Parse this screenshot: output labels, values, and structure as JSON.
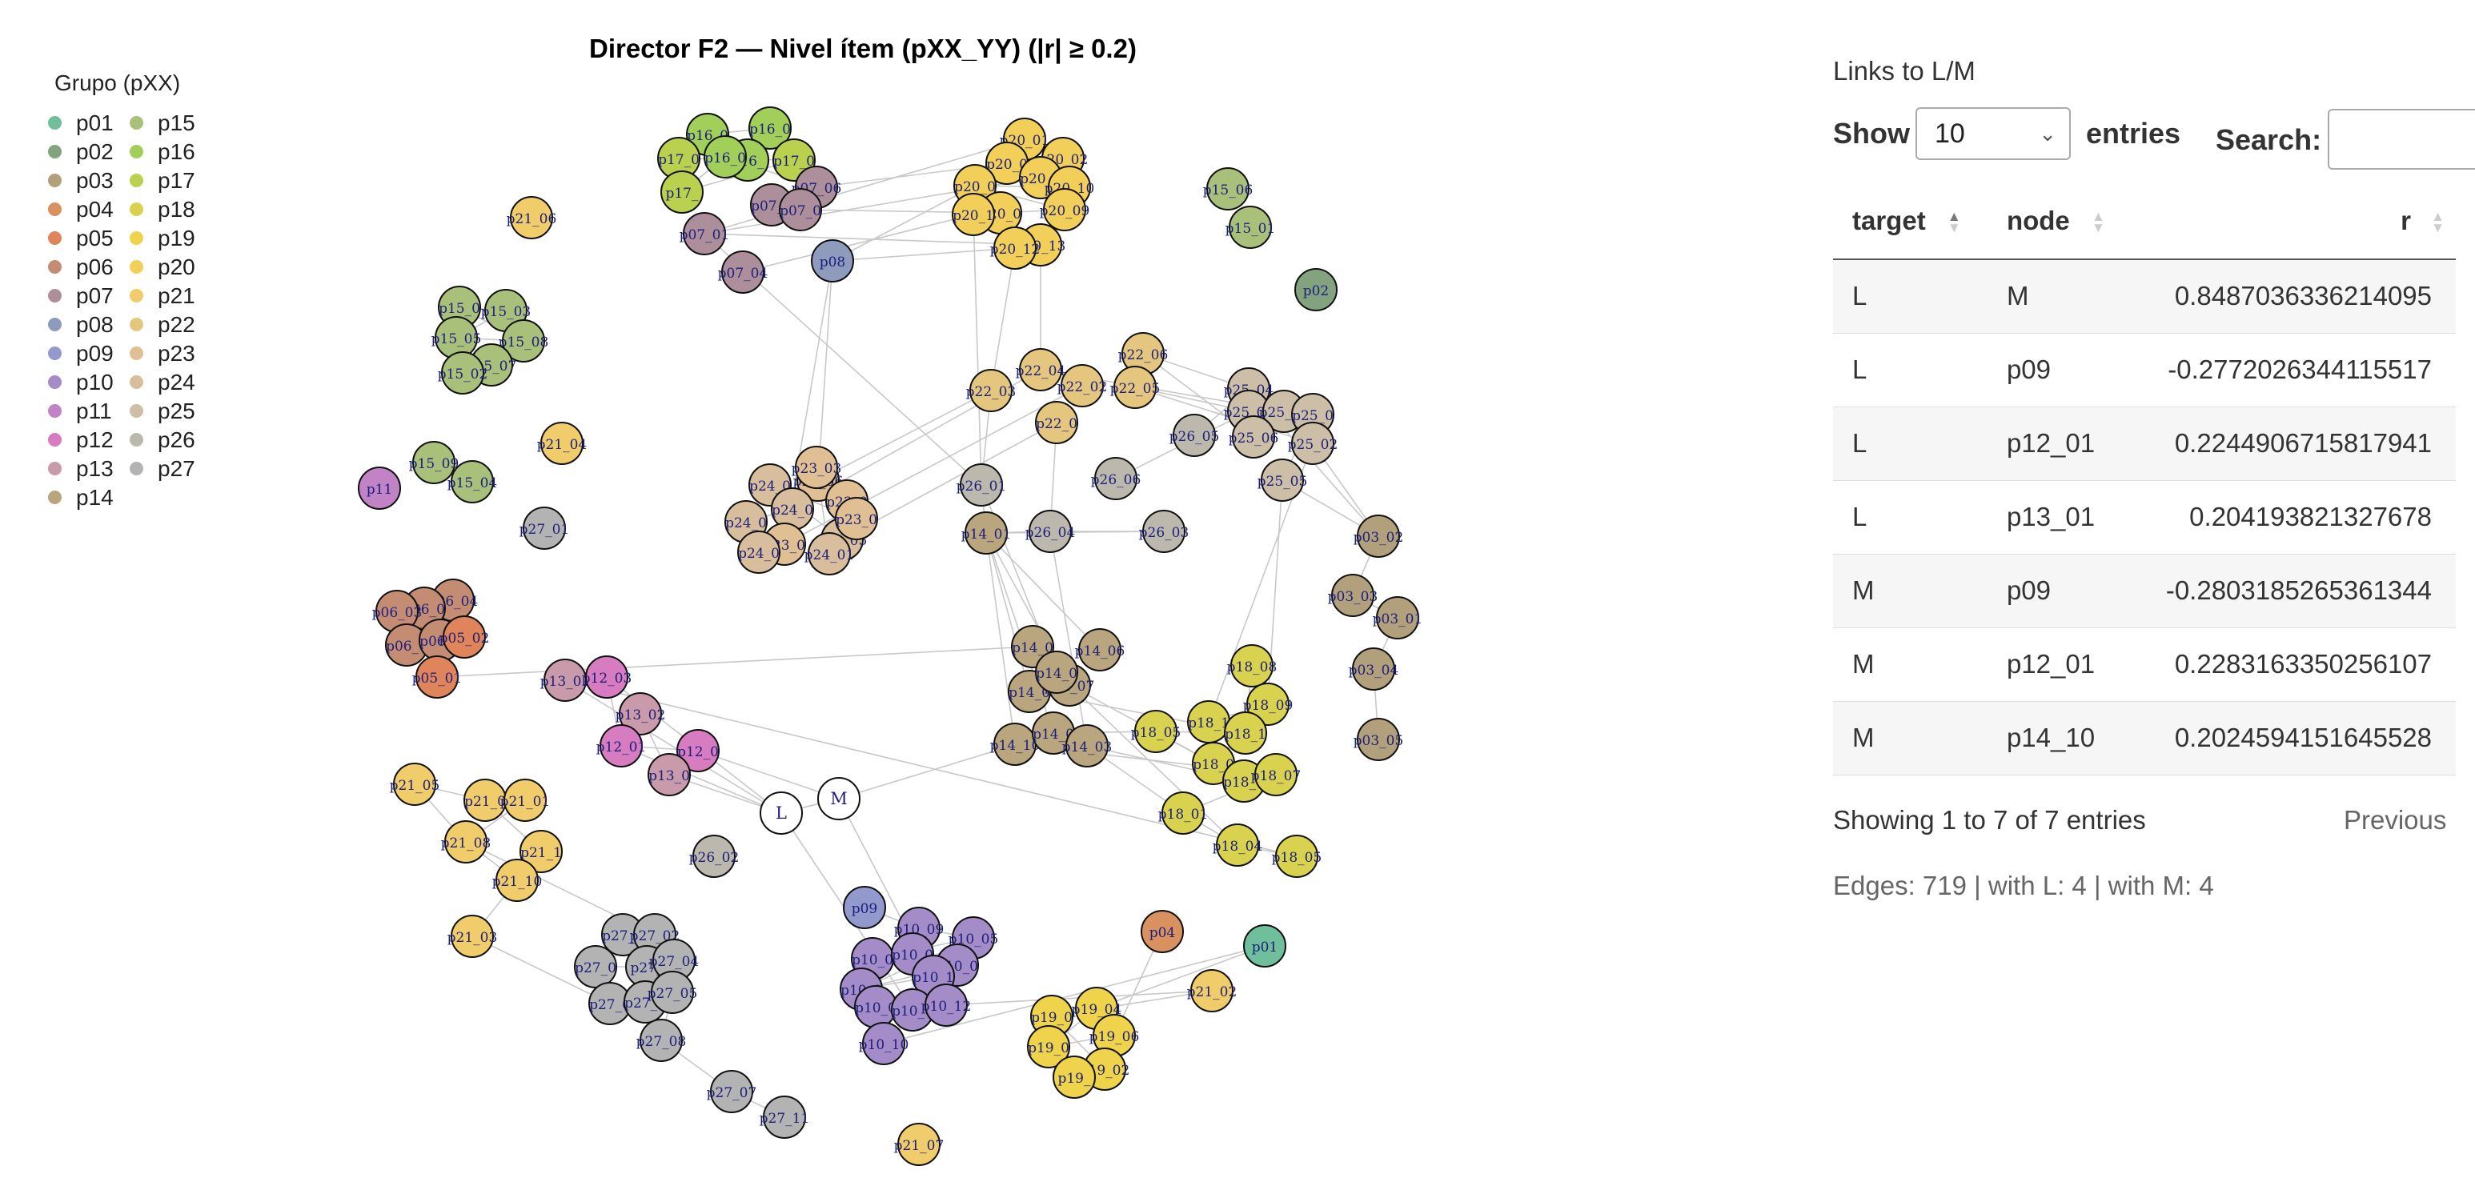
{
  "graph": {
    "title": "Director F2 — Nivel ítem (pXX_YY) (|r| ≥ 0.2)",
    "legend_title": "Grupo (pXX)",
    "legend": [
      {
        "label": "p01",
        "color": "#6fbf9d"
      },
      {
        "label": "p02",
        "color": "#83a37f"
      },
      {
        "label": "p03",
        "color": "#b2a07c"
      },
      {
        "label": "p04",
        "color": "#d9925f"
      },
      {
        "label": "p05",
        "color": "#e0845b"
      },
      {
        "label": "p06",
        "color": "#c58c74"
      },
      {
        "label": "p07",
        "color": "#ad8f9b"
      },
      {
        "label": "p08",
        "color": "#8e9bbd"
      },
      {
        "label": "p09",
        "color": "#9299cd"
      },
      {
        "label": "p10",
        "color": "#a48cc8"
      },
      {
        "label": "p11",
        "color": "#c183c6"
      },
      {
        "label": "p12",
        "color": "#d77cc0"
      },
      {
        "label": "p13",
        "color": "#c99aaa"
      },
      {
        "label": "p14",
        "color": "#b9a57e"
      },
      {
        "label": "p15",
        "color": "#a9c07b"
      },
      {
        "label": "p16",
        "color": "#a2cf59"
      },
      {
        "label": "p17",
        "color": "#b9d14f"
      },
      {
        "label": "p18",
        "color": "#d9d24e"
      },
      {
        "label": "p19",
        "color": "#eed34b"
      },
      {
        "label": "p20",
        "color": "#f2cf58"
      },
      {
        "label": "p21",
        "color": "#f0cc6a"
      },
      {
        "label": "p22",
        "color": "#e5c67e"
      },
      {
        "label": "p23",
        "color": "#e0c092"
      },
      {
        "label": "p24",
        "color": "#d8be9c"
      },
      {
        "label": "p25",
        "color": "#ccbea7"
      },
      {
        "label": "p26",
        "color": "#bdb8ad"
      },
      {
        "label": "p27",
        "color": "#b3b3b3"
      }
    ],
    "nodes": [
      {
        "label": "p16_0",
        "g": "p16"
      },
      {
        "label": "p16_0",
        "g": "p16"
      },
      {
        "label": "p16_",
        "g": "p16"
      },
      {
        "label": "p17_0",
        "g": "p17"
      },
      {
        "label": "p17_0",
        "g": "p17"
      },
      {
        "label": "p17_",
        "g": "p17"
      },
      {
        "label": "p16_0",
        "g": "p16"
      },
      {
        "label": "p07_06",
        "g": "p07"
      },
      {
        "label": "p07_0",
        "g": "p07"
      },
      {
        "label": "p07_0",
        "g": "p07"
      },
      {
        "label": "p07_04",
        "g": "p07"
      },
      {
        "label": "p07_01",
        "g": "p07"
      },
      {
        "label": "p08",
        "g": "p08"
      },
      {
        "label": "p20_01",
        "g": "p20"
      },
      {
        "label": "p20_0",
        "g": "p20"
      },
      {
        "label": "p20_02",
        "g": "p20"
      },
      {
        "label": "p20_1",
        "g": "p20"
      },
      {
        "label": "p20_10",
        "g": "p20"
      },
      {
        "label": "p20_0",
        "g": "p20"
      },
      {
        "label": "p20_09",
        "g": "p20"
      },
      {
        "label": "p20_0",
        "g": "p20"
      },
      {
        "label": "p20_1",
        "g": "p20"
      },
      {
        "label": "p20_13",
        "g": "p20"
      },
      {
        "label": "p20_12",
        "g": "p20"
      },
      {
        "label": "p15_06",
        "g": "p15"
      },
      {
        "label": "p15_01",
        "g": "p15"
      },
      {
        "label": "p02",
        "g": "p02"
      },
      {
        "label": "p21_06",
        "g": "p21"
      },
      {
        "label": "p15_0",
        "g": "p15"
      },
      {
        "label": "p15_03",
        "g": "p15"
      },
      {
        "label": "p15_05",
        "g": "p15"
      },
      {
        "label": "p15_08",
        "g": "p15"
      },
      {
        "label": "p15_07",
        "g": "p15"
      },
      {
        "label": "p15_02",
        "g": "p15"
      },
      {
        "label": "p15_09",
        "g": "p15"
      },
      {
        "label": "p15_04",
        "g": "p15"
      },
      {
        "label": "p21_04",
        "g": "p21"
      },
      {
        "label": "p11",
        "g": "p11"
      },
      {
        "label": "p27_01",
        "g": "p27"
      },
      {
        "label": "p22_06",
        "g": "p22"
      },
      {
        "label": "p22_03",
        "g": "p22"
      },
      {
        "label": "p22_04",
        "g": "p22"
      },
      {
        "label": "p22_02",
        "g": "p22"
      },
      {
        "label": "p22_05",
        "g": "p22"
      },
      {
        "label": "p22_0",
        "g": "p22"
      },
      {
        "label": "p25_04",
        "g": "p25"
      },
      {
        "label": "p25_03",
        "g": "p25"
      },
      {
        "label": "p25_07",
        "g": "p25"
      },
      {
        "label": "p25_0",
        "g": "p25"
      },
      {
        "label": "p25_06",
        "g": "p25"
      },
      {
        "label": "p25_02",
        "g": "p25"
      },
      {
        "label": "p25_05",
        "g": "p25"
      },
      {
        "label": "p26_05",
        "g": "p26"
      },
      {
        "label": "p26_06",
        "g": "p26"
      },
      {
        "label": "p26_01",
        "g": "p26"
      },
      {
        "label": "p26_04",
        "g": "p26"
      },
      {
        "label": "p26_03",
        "g": "p26"
      },
      {
        "label": "p14_01",
        "g": "p14"
      },
      {
        "label": "p23_06",
        "g": "p23"
      },
      {
        "label": "p23_0",
        "g": "p23"
      },
      {
        "label": "p24_0",
        "g": "p24"
      },
      {
        "label": "p24_0",
        "g": "p24"
      },
      {
        "label": "p24_05",
        "g": "p24"
      },
      {
        "label": "p24_0",
        "g": "p24"
      },
      {
        "label": "p24_01",
        "g": "p24"
      },
      {
        "label": "p23_03",
        "g": "p23"
      },
      {
        "label": "p23_0",
        "g": "p23"
      },
      {
        "label": "p24_0",
        "g": "p24"
      },
      {
        "label": "p23_0",
        "g": "p23"
      },
      {
        "label": "p03_02",
        "g": "p03"
      },
      {
        "label": "p03_03",
        "g": "p03"
      },
      {
        "label": "p03_01",
        "g": "p03"
      },
      {
        "label": "p03_04",
        "g": "p03"
      },
      {
        "label": "p03_05",
        "g": "p03"
      },
      {
        "label": "p06_04",
        "g": "p06"
      },
      {
        "label": "p06_0",
        "g": "p06"
      },
      {
        "label": "p06_03",
        "g": "p06"
      },
      {
        "label": "p06_0",
        "g": "p06"
      },
      {
        "label": "p06_0",
        "g": "p06"
      },
      {
        "label": "p05_02",
        "g": "p05"
      },
      {
        "label": "p05_01",
        "g": "p05"
      },
      {
        "label": "p14_0",
        "g": "p14"
      },
      {
        "label": "p14_06",
        "g": "p14"
      },
      {
        "label": "p14_0",
        "g": "p14"
      },
      {
        "label": "p14_07",
        "g": "p14"
      },
      {
        "label": "p14_0",
        "g": "p14"
      },
      {
        "label": "p14_10",
        "g": "p14"
      },
      {
        "label": "p14_0",
        "g": "p14"
      },
      {
        "label": "p14_03",
        "g": "p14"
      },
      {
        "label": "p18_08",
        "g": "p18"
      },
      {
        "label": "p18_09",
        "g": "p18"
      },
      {
        "label": "p18_1",
        "g": "p18"
      },
      {
        "label": "p18_1",
        "g": "p18"
      },
      {
        "label": "p18_05",
        "g": "p18"
      },
      {
        "label": "p18_0",
        "g": "p18"
      },
      {
        "label": "p18_0",
        "g": "p18"
      },
      {
        "label": "p18_07",
        "g": "p18"
      },
      {
        "label": "p18_01",
        "g": "p18"
      },
      {
        "label": "p18_04",
        "g": "p18"
      },
      {
        "label": "p18_05",
        "g": "p18"
      },
      {
        "label": "p13_01",
        "g": "p13"
      },
      {
        "label": "p12_03",
        "g": "p12"
      },
      {
        "label": "p13_02",
        "g": "p13"
      },
      {
        "label": "p12_01",
        "g": "p12"
      },
      {
        "label": "p12_0",
        "g": "p12"
      },
      {
        "label": "p13_0",
        "g": "p13"
      },
      {
        "label": "L",
        "g": "LM"
      },
      {
        "label": "M",
        "g": "LM"
      },
      {
        "label": "p21_05",
        "g": "p21"
      },
      {
        "label": "p21_0",
        "g": "p21"
      },
      {
        "label": "p21_01",
        "g": "p21"
      },
      {
        "label": "p21_08",
        "g": "p21"
      },
      {
        "label": "p21_1",
        "g": "p21"
      },
      {
        "label": "p21_10",
        "g": "p21"
      },
      {
        "label": "p21_03",
        "g": "p21"
      },
      {
        "label": "p26_02",
        "g": "p26"
      },
      {
        "label": "p27_0",
        "g": "p27"
      },
      {
        "label": "p27_02",
        "g": "p27"
      },
      {
        "label": "p27_0",
        "g": "p27"
      },
      {
        "label": "p27_",
        "g": "p27"
      },
      {
        "label": "p27_04",
        "g": "p27"
      },
      {
        "label": "p27_0",
        "g": "p27"
      },
      {
        "label": "p27_0",
        "g": "p27"
      },
      {
        "label": "p27_05",
        "g": "p27"
      },
      {
        "label": "p27_08",
        "g": "p27"
      },
      {
        "label": "p27_07",
        "g": "p27"
      },
      {
        "label": "p27_11",
        "g": "p27"
      },
      {
        "label": "p09",
        "g": "p09"
      },
      {
        "label": "p10_09",
        "g": "p10"
      },
      {
        "label": "p10_05",
        "g": "p10"
      },
      {
        "label": "p10_0",
        "g": "p10"
      },
      {
        "label": "p10_0",
        "g": "p10"
      },
      {
        "label": "p10_0",
        "g": "p10"
      },
      {
        "label": "p10_0",
        "g": "p10"
      },
      {
        "label": "p10_1",
        "g": "p10"
      },
      {
        "label": "p10_0",
        "g": "p10"
      },
      {
        "label": "p10_0",
        "g": "p10"
      },
      {
        "label": "p10_12",
        "g": "p10"
      },
      {
        "label": "p10_10",
        "g": "p10"
      },
      {
        "label": "p04",
        "g": "p04"
      },
      {
        "label": "p01",
        "g": "p01"
      },
      {
        "label": "p21_02",
        "g": "p21"
      },
      {
        "label": "p19_04",
        "g": "p19"
      },
      {
        "label": "p19_0",
        "g": "p19"
      },
      {
        "label": "p19_06",
        "g": "p19"
      },
      {
        "label": "p19_0",
        "g": "p19"
      },
      {
        "label": "p19_02",
        "g": "p19"
      },
      {
        "label": "p19_",
        "g": "p19"
      },
      {
        "label": "p21_07",
        "g": "p21"
      }
    ]
  },
  "table_panel": {
    "title": "Links to L/M",
    "show_label": "Show",
    "entries_value": "10",
    "entries_label": "entries",
    "search_label": "Search:",
    "search_value": "",
    "columns": [
      "target",
      "node",
      "r"
    ],
    "rows": [
      [
        "L",
        "M",
        "0.8487036336214095"
      ],
      [
        "L",
        "p09",
        "-0.2772026344115517"
      ],
      [
        "L",
        "p12_01",
        "0.2244906715817941"
      ],
      [
        "L",
        "p13_01",
        "0.204193821327678"
      ],
      [
        "M",
        "p09",
        "-0.2803185265361344"
      ],
      [
        "M",
        "p12_01",
        "0.2283163350256107"
      ],
      [
        "M",
        "p14_10",
        "0.2024594151645528"
      ]
    ],
    "info": "Showing 1 to 7 of 7 entries",
    "previous_label": "Previous",
    "edges_summary": "Edges: 719 | with L: 4 | with M: 4"
  }
}
